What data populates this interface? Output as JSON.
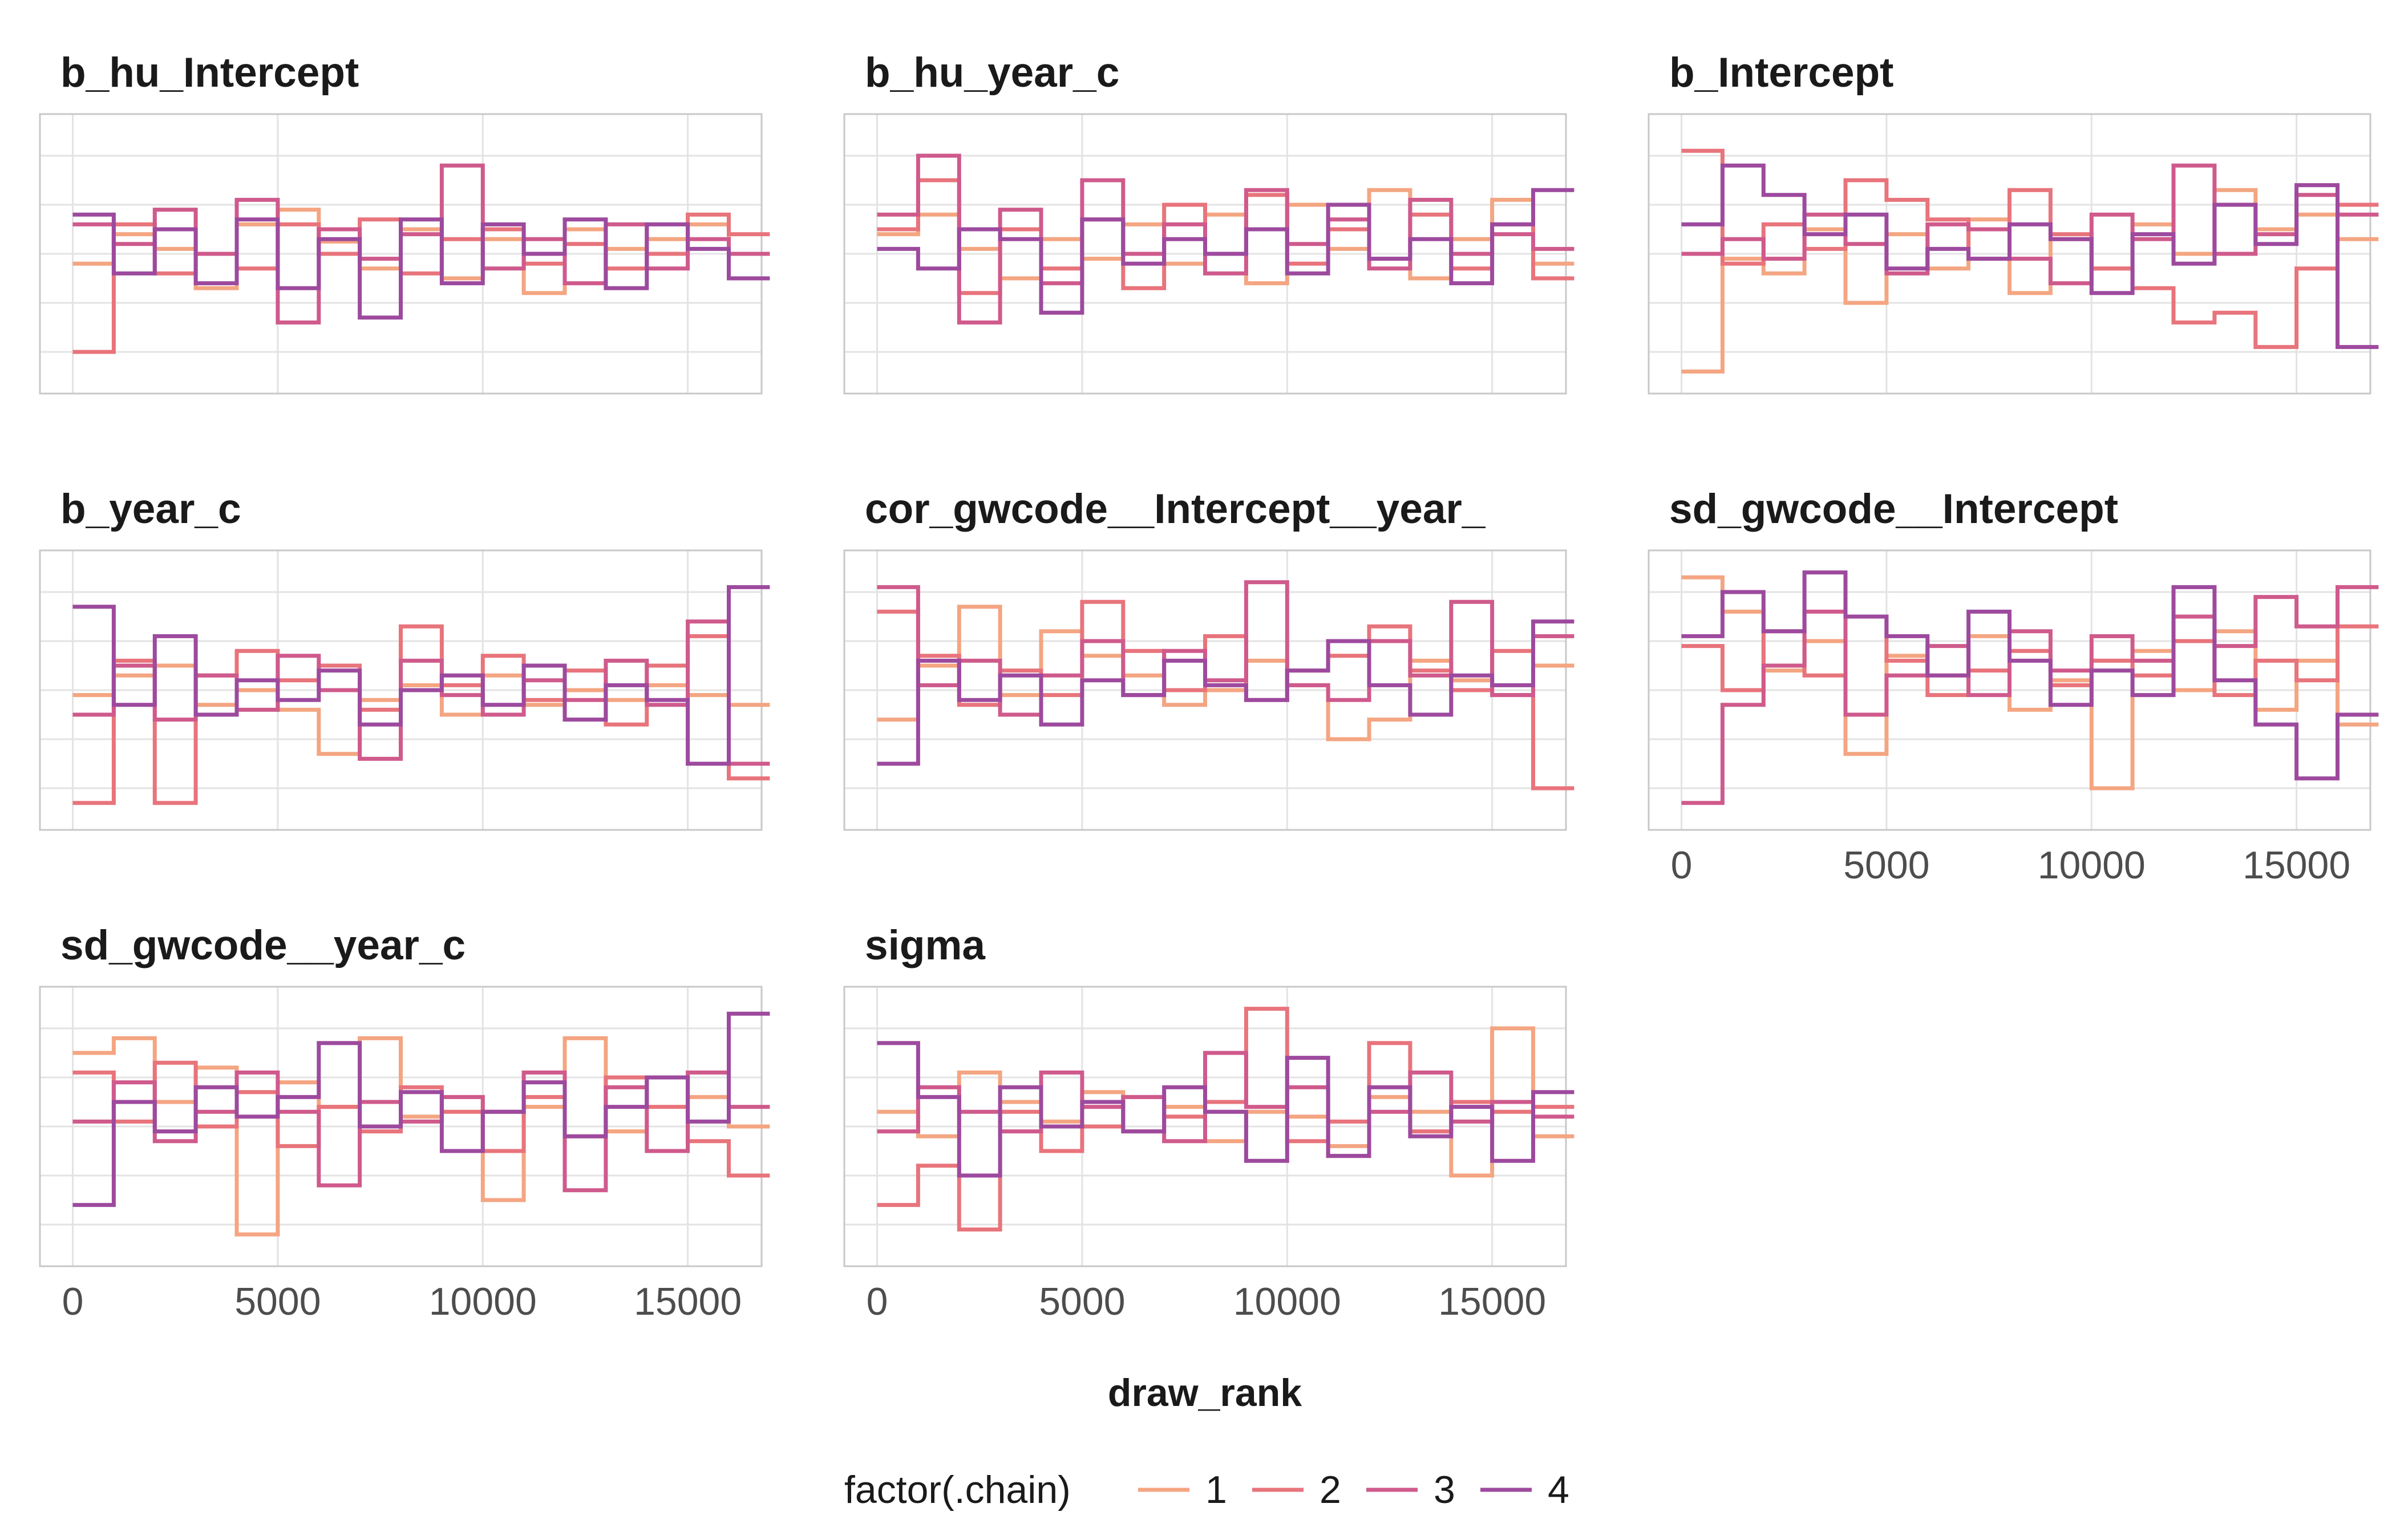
{
  "chart_data": {
    "type": "line",
    "step": true,
    "facet_titles": [
      "b_hu_Intercept",
      "b_hu_year_c",
      "b_Intercept",
      "b_year_c",
      "cor_gwcode__Intercept__year_",
      "sd_gwcode__Intercept",
      "sd_gwcode__year_c",
      "sigma"
    ],
    "x_ticks": [
      "0",
      "5000",
      "10000",
      "15000"
    ],
    "x_tick_values": [
      0,
      5000,
      10000,
      15000
    ],
    "xlabel": "draw_rank",
    "xlim": [
      -800,
      16800
    ],
    "bins": [
      0,
      1000,
      2000,
      3000,
      4000,
      5000,
      6000,
      7000,
      8000,
      9000,
      10000,
      11000,
      12000,
      13000,
      14000,
      15000,
      16000
    ],
    "grid": true,
    "legend": {
      "title": "factor(.chain)",
      "position": "bottom",
      "entries": [
        "1",
        "2",
        "3",
        "4"
      ]
    },
    "colors": [
      "#f4a582",
      "#e8747c",
      "#cf5a8c",
      "#9d4a9e"
    ],
    "panels": [
      {
        "title": "b_hu_Intercept",
        "series": [
          {
            "name": "1",
            "values": [
              0.46,
              0.58,
              0.52,
              0.36,
              0.62,
              0.68,
              0.55,
              0.44,
              0.6,
              0.4,
              0.56,
              0.34,
              0.6,
              0.52,
              0.56,
              0.62,
              0.5
            ]
          },
          {
            "name": "2",
            "values": [
              0.1,
              0.62,
              0.42,
              0.5,
              0.44,
              0.62,
              0.5,
              0.64,
              0.42,
              0.56,
              0.6,
              0.46,
              0.54,
              0.44,
              0.5,
              0.66,
              0.58
            ]
          },
          {
            "name": "3",
            "values": [
              0.62,
              0.54,
              0.68,
              0.5,
              0.72,
              0.22,
              0.6,
              0.48,
              0.58,
              0.86,
              0.44,
              0.56,
              0.38,
              0.62,
              0.44,
              0.56,
              0.5
            ]
          },
          {
            "name": "4",
            "values": [
              0.66,
              0.42,
              0.6,
              0.38,
              0.64,
              0.36,
              0.56,
              0.24,
              0.64,
              0.38,
              0.62,
              0.5,
              0.64,
              0.36,
              0.62,
              0.52,
              0.4
            ]
          }
        ]
      },
      {
        "title": "b_hu_year_c",
        "series": [
          {
            "name": "1",
            "values": [
              0.58,
              0.66,
              0.52,
              0.4,
              0.56,
              0.48,
              0.62,
              0.46,
              0.66,
              0.38,
              0.7,
              0.52,
              0.76,
              0.4,
              0.56,
              0.72,
              0.46
            ]
          },
          {
            "name": "2",
            "values": [
              0.6,
              0.8,
              0.34,
              0.6,
              0.44,
              0.64,
              0.36,
              0.7,
              0.5,
              0.74,
              0.46,
              0.6,
              0.48,
              0.66,
              0.44,
              0.62,
              0.4
            ]
          },
          {
            "name": "3",
            "values": [
              0.66,
              0.9,
              0.22,
              0.68,
              0.38,
              0.8,
              0.5,
              0.62,
              0.42,
              0.76,
              0.54,
              0.64,
              0.44,
              0.72,
              0.5,
              0.58,
              0.52
            ]
          },
          {
            "name": "4",
            "values": [
              0.52,
              0.44,
              0.6,
              0.56,
              0.26,
              0.64,
              0.46,
              0.56,
              0.5,
              0.6,
              0.42,
              0.7,
              0.48,
              0.56,
              0.38,
              0.62,
              0.76
            ]
          }
        ]
      },
      {
        "title": "b_Intercept",
        "series": [
          {
            "name": "1",
            "values": [
              0.02,
              0.48,
              0.42,
              0.6,
              0.3,
              0.58,
              0.44,
              0.64,
              0.34,
              0.56,
              0.44,
              0.62,
              0.5,
              0.76,
              0.6,
              0.66,
              0.56
            ]
          },
          {
            "name": "2",
            "values": [
              0.92,
              0.46,
              0.62,
              0.52,
              0.8,
              0.72,
              0.64,
              0.48,
              0.76,
              0.58,
              0.44,
              0.36,
              0.22,
              0.26,
              0.12,
              0.44,
              0.7
            ]
          },
          {
            "name": "3",
            "values": [
              0.5,
              0.56,
              0.48,
              0.66,
              0.54,
              0.42,
              0.62,
              0.6,
              0.48,
              0.38,
              0.66,
              0.56,
              0.86,
              0.5,
              0.58,
              0.74,
              0.66
            ]
          },
          {
            "name": "4",
            "values": [
              0.62,
              0.86,
              0.74,
              0.58,
              0.66,
              0.44,
              0.52,
              0.48,
              0.62,
              0.56,
              0.34,
              0.58,
              0.46,
              0.7,
              0.54,
              0.78,
              0.12
            ]
          }
        ]
      },
      {
        "title": "b_year_c",
        "series": [
          {
            "name": "1",
            "values": [
              0.48,
              0.56,
              0.6,
              0.44,
              0.5,
              0.42,
              0.24,
              0.46,
              0.52,
              0.4,
              0.56,
              0.44,
              0.5,
              0.46,
              0.52,
              0.48,
              0.44
            ]
          },
          {
            "name": "2",
            "values": [
              0.04,
              0.62,
              0.04,
              0.56,
              0.66,
              0.54,
              0.6,
              0.42,
              0.76,
              0.52,
              0.64,
              0.46,
              0.58,
              0.36,
              0.6,
              0.72,
              0.14
            ]
          },
          {
            "name": "3",
            "values": [
              0.4,
              0.6,
              0.38,
              0.56,
              0.42,
              0.64,
              0.5,
              0.22,
              0.62,
              0.48,
              0.4,
              0.54,
              0.46,
              0.62,
              0.44,
              0.78,
              0.2
            ]
          },
          {
            "name": "4",
            "values": [
              0.84,
              0.44,
              0.72,
              0.4,
              0.54,
              0.46,
              0.58,
              0.36,
              0.5,
              0.56,
              0.44,
              0.6,
              0.38,
              0.52,
              0.46,
              0.2,
              0.92
            ]
          }
        ]
      },
      {
        "title": "cor_gwcode__Intercept__year_",
        "series": [
          {
            "name": "1",
            "values": [
              0.38,
              0.6,
              0.84,
              0.48,
              0.74,
              0.64,
              0.56,
              0.44,
              0.5,
              0.62,
              0.52,
              0.3,
              0.38,
              0.62,
              0.54,
              0.48,
              0.6
            ]
          },
          {
            "name": "2",
            "values": [
              0.82,
              0.64,
              0.44,
              0.58,
              0.48,
              0.86,
              0.66,
              0.5,
              0.72,
              0.46,
              0.58,
              0.64,
              0.76,
              0.58,
              0.5,
              0.66,
              0.1
            ]
          },
          {
            "name": "3",
            "values": [
              0.92,
              0.52,
              0.62,
              0.4,
              0.56,
              0.7,
              0.48,
              0.66,
              0.54,
              0.94,
              0.52,
              0.46,
              0.7,
              0.56,
              0.86,
              0.48,
              0.72
            ]
          },
          {
            "name": "4",
            "values": [
              0.2,
              0.62,
              0.46,
              0.56,
              0.36,
              0.54,
              0.48,
              0.62,
              0.52,
              0.46,
              0.58,
              0.7,
              0.52,
              0.4,
              0.56,
              0.52,
              0.78
            ]
          }
        ]
      },
      {
        "title": "sd_gwcode__Intercept",
        "series": [
          {
            "name": "1",
            "values": [
              0.96,
              0.82,
              0.58,
              0.7,
              0.24,
              0.64,
              0.56,
              0.72,
              0.42,
              0.54,
              0.1,
              0.66,
              0.5,
              0.74,
              0.42,
              0.62,
              0.36
            ]
          },
          {
            "name": "2",
            "values": [
              0.68,
              0.5,
              0.74,
              0.56,
              0.8,
              0.62,
              0.48,
              0.58,
              0.66,
              0.52,
              0.62,
              0.56,
              0.7,
              0.48,
              0.62,
              0.54,
              0.76
            ]
          },
          {
            "name": "3",
            "values": [
              0.04,
              0.44,
              0.6,
              0.82,
              0.4,
              0.56,
              0.68,
              0.48,
              0.74,
              0.58,
              0.72,
              0.62,
              0.8,
              0.68,
              0.88,
              0.76,
              0.92
            ]
          },
          {
            "name": "4",
            "values": [
              0.72,
              0.9,
              0.74,
              0.98,
              0.8,
              0.72,
              0.56,
              0.82,
              0.62,
              0.44,
              0.58,
              0.48,
              0.92,
              0.54,
              0.36,
              0.14,
              0.4
            ]
          }
        ]
      },
      {
        "title": "sd_gwcode__year_c",
        "series": [
          {
            "name": "1",
            "values": [
              0.8,
              0.86,
              0.6,
              0.74,
              0.06,
              0.68,
              0.58,
              0.86,
              0.54,
              0.62,
              0.2,
              0.58,
              0.86,
              0.48,
              0.7,
              0.62,
              0.5
            ]
          },
          {
            "name": "2",
            "values": [
              0.72,
              0.52,
              0.76,
              0.5,
              0.64,
              0.42,
              0.58,
              0.48,
              0.66,
              0.56,
              0.4,
              0.62,
              0.46,
              0.7,
              0.58,
              0.44,
              0.3
            ]
          },
          {
            "name": "3",
            "values": [
              0.52,
              0.68,
              0.44,
              0.56,
              0.72,
              0.56,
              0.26,
              0.6,
              0.52,
              0.62,
              0.56,
              0.72,
              0.24,
              0.66,
              0.4,
              0.72,
              0.58
            ]
          },
          {
            "name": "4",
            "values": [
              0.18,
              0.6,
              0.48,
              0.66,
              0.54,
              0.62,
              0.84,
              0.5,
              0.64,
              0.4,
              0.56,
              0.68,
              0.46,
              0.58,
              0.7,
              0.52,
              0.96
            ]
          }
        ]
      },
      {
        "title": "sigma",
        "series": [
          {
            "name": "1",
            "values": [
              0.56,
              0.46,
              0.72,
              0.6,
              0.52,
              0.64,
              0.48,
              0.58,
              0.44,
              0.56,
              0.54,
              0.42,
              0.62,
              0.56,
              0.3,
              0.9,
              0.46
            ]
          },
          {
            "name": "2",
            "values": [
              0.18,
              0.34,
              0.08,
              0.56,
              0.4,
              0.5,
              0.62,
              0.54,
              0.6,
              0.98,
              0.44,
              0.52,
              0.84,
              0.48,
              0.6,
              0.56,
              0.58
            ]
          },
          {
            "name": "3",
            "values": [
              0.48,
              0.66,
              0.56,
              0.48,
              0.72,
              0.58,
              0.62,
              0.44,
              0.8,
              0.58,
              0.66,
              0.38,
              0.56,
              0.72,
              0.52,
              0.6,
              0.54
            ]
          },
          {
            "name": "4",
            "values": [
              0.84,
              0.62,
              0.3,
              0.66,
              0.5,
              0.6,
              0.48,
              0.66,
              0.56,
              0.36,
              0.78,
              0.38,
              0.66,
              0.46,
              0.58,
              0.36,
              0.64
            ]
          }
        ]
      }
    ]
  }
}
